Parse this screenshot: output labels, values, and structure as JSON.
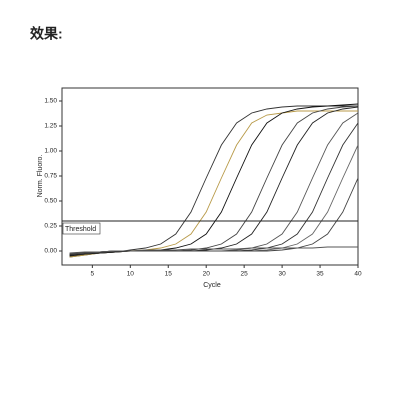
{
  "heading": "效果:",
  "chart_data": {
    "type": "line",
    "x_label": "Cycle",
    "y_label": "Norm. Fluoro.",
    "x": [
      2,
      4,
      6,
      8,
      10,
      12,
      14,
      16,
      18,
      20,
      22,
      24,
      26,
      28,
      30,
      32,
      34,
      36,
      38,
      40
    ],
    "xlim": [
      1,
      40
    ],
    "xticks": [
      5,
      10,
      15,
      20,
      25,
      30,
      35,
      40
    ],
    "ylim": [
      -0.14,
      1.63
    ],
    "yticks": [
      {
        "value": 0,
        "label": "0.00"
      },
      {
        "value": 0.25,
        "label": "0.25"
      },
      {
        "value": 0.5,
        "label": "0.50"
      },
      {
        "value": 0.75,
        "label": "0.75"
      },
      {
        "value": 1,
        "label": "1.00"
      },
      {
        "value": 1.25,
        "label": "1.25"
      },
      {
        "value": 1.5,
        "label": "1.50"
      }
    ],
    "threshold": {
      "value": 0.3,
      "label": "Threshold"
    },
    "series": [
      {
        "color": "#333333",
        "values": [
          -0.06,
          -0.04,
          -0.02,
          -0.01,
          0.01,
          0.03,
          0.07,
          0.17,
          0.39,
          0.73,
          1.06,
          1.28,
          1.38,
          1.42,
          1.44,
          1.45,
          1.45,
          1.45,
          1.45,
          1.45
        ]
      },
      {
        "color": "#b89a48",
        "values": [
          -0.06,
          -0.04,
          -0.02,
          -0.01,
          0,
          0.01,
          0.03,
          0.07,
          0.17,
          0.39,
          0.73,
          1.06,
          1.28,
          1.36,
          1.38,
          1.4,
          1.4,
          1.4,
          1.4,
          1.4
        ]
      },
      {
        "color": "#111111",
        "values": [
          -0.05,
          -0.03,
          -0.02,
          -0.01,
          0,
          0,
          0.01,
          0.03,
          0.07,
          0.17,
          0.39,
          0.73,
          1.06,
          1.28,
          1.38,
          1.42,
          1.44,
          1.45,
          1.46,
          1.47
        ]
      },
      {
        "color": "#444444",
        "values": [
          -0.04,
          -0.03,
          -0.02,
          -0.01,
          0,
          0,
          0,
          0,
          0.01,
          0.03,
          0.07,
          0.17,
          0.39,
          0.73,
          1.06,
          1.28,
          1.38,
          1.42,
          1.44,
          1.45
        ]
      },
      {
        "color": "#222222",
        "values": [
          -0.04,
          -0.03,
          -0.02,
          -0.01,
          0,
          0,
          0,
          0,
          0,
          0.01,
          0.03,
          0.07,
          0.17,
          0.39,
          0.73,
          1.06,
          1.28,
          1.38,
          1.42,
          1.44
        ]
      },
      {
        "color": "#555555",
        "values": [
          -0.03,
          -0.02,
          -0.01,
          0,
          0,
          0,
          0,
          0,
          0,
          0,
          0,
          0.01,
          0.03,
          0.07,
          0.17,
          0.39,
          0.73,
          1.06,
          1.28,
          1.38
        ]
      },
      {
        "color": "#333333",
        "values": [
          -0.03,
          -0.02,
          -0.01,
          0,
          0,
          0,
          0,
          0,
          0,
          0,
          0,
          0,
          0.01,
          0.03,
          0.07,
          0.17,
          0.39,
          0.73,
          1.06,
          1.28
        ]
      },
      {
        "color": "#666666",
        "values": [
          -0.03,
          -0.02,
          -0.01,
          0,
          0,
          0,
          0,
          0,
          0,
          0,
          0,
          0,
          0,
          0.01,
          0.03,
          0.07,
          0.17,
          0.39,
          0.73,
          1.06
        ]
      },
      {
        "color": "#444444",
        "values": [
          -0.03,
          -0.02,
          -0.01,
          0,
          0,
          0,
          0,
          0,
          0,
          0,
          0,
          0,
          0,
          0,
          0.01,
          0.03,
          0.07,
          0.17,
          0.39,
          0.73
        ]
      },
      {
        "color": "#555555",
        "values": [
          -0.02,
          -0.01,
          -0.01,
          0,
          0,
          0.01,
          0.01,
          0.01,
          0.02,
          0.02,
          0.02,
          0.02,
          0.03,
          0.03,
          0.03,
          0.03,
          0.03,
          0.04,
          0.04,
          0.04
        ]
      }
    ]
  }
}
